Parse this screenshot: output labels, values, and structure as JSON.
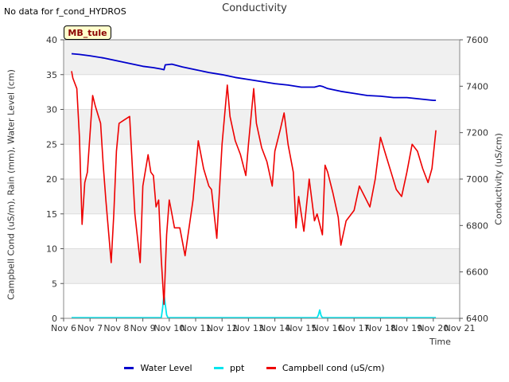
{
  "header": {
    "note": "No data for f_cond_HYDROS",
    "site_tag": "MB_tule"
  },
  "chart_data": {
    "type": "line",
    "title": "Conductivity",
    "xlabel": "Time",
    "ylabel_left": "Campbell Cond (uS/m), Rain (mm), Water Level (cm)",
    "ylabel_right": "Conductivity (uS/cm)",
    "x_tick_labels": [
      "Nov 6",
      "Nov 7",
      "Nov 8",
      "Nov 9",
      "Nov 10",
      "Nov 11",
      "Nov 12",
      "Nov 13",
      "Nov 14",
      "Nov 15",
      "Nov 16",
      "Nov 17",
      "Nov 18",
      "Nov 19",
      "Nov 20",
      "Nov 21"
    ],
    "xlim": [
      6,
      21
    ],
    "ylim_left": [
      0,
      40
    ],
    "yticks_left": [
      0,
      5,
      10,
      15,
      20,
      25,
      30,
      35,
      40
    ],
    "ylim_right": [
      6400,
      7600
    ],
    "yticks_right": [
      6400,
      6600,
      6800,
      7000,
      7200,
      7400,
      7600
    ],
    "grid": true,
    "legend_position": "bottom",
    "colors": {
      "band": "#f0f0f0",
      "gridline": "#dcdcdc",
      "axis": "#888888"
    },
    "series": [
      {
        "name": "Water Level",
        "color": "#0000cc",
        "axis": "left",
        "x": [
          6.3,
          6.6,
          7.0,
          7.5,
          8.0,
          8.5,
          9.0,
          9.4,
          9.7,
          9.8,
          9.85,
          10.1,
          10.5,
          11.0,
          11.5,
          12.0,
          12.5,
          13.0,
          13.5,
          14.0,
          14.5,
          15.0,
          15.5,
          15.7,
          15.8,
          16.0,
          16.5,
          17.0,
          17.5,
          18.0,
          18.5,
          19.0,
          19.5,
          20.0,
          20.1
        ],
        "values": [
          38.0,
          37.9,
          37.7,
          37.4,
          37.0,
          36.6,
          36.2,
          36.0,
          35.8,
          35.7,
          36.4,
          36.5,
          36.1,
          35.7,
          35.3,
          35.0,
          34.6,
          34.3,
          34.0,
          33.7,
          33.5,
          33.2,
          33.2,
          33.4,
          33.3,
          33.0,
          32.6,
          32.3,
          32.0,
          31.9,
          31.7,
          31.7,
          31.5,
          31.3,
          31.3
        ]
      },
      {
        "name": "ppt",
        "color": "#00e5ee",
        "axis": "left",
        "x": [
          6.3,
          9.7,
          9.75,
          9.8,
          9.85,
          9.9,
          9.95,
          12.8,
          14.8,
          15.6,
          15.65,
          15.7,
          15.75,
          15.8,
          20.1
        ],
        "values": [
          0.1,
          0.1,
          1.5,
          3.5,
          2.0,
          0.5,
          0.1,
          0.1,
          0.1,
          0.1,
          0.5,
          1.2,
          0.4,
          0.1,
          0.1
        ]
      },
      {
        "name": "Campbell cond (uS/cm)",
        "color": "#ee0000",
        "axis": "left",
        "x": [
          6.3,
          6.35,
          6.5,
          6.6,
          6.7,
          6.8,
          6.9,
          7.1,
          7.2,
          7.4,
          7.5,
          7.6,
          7.8,
          7.9,
          8.0,
          8.1,
          8.3,
          8.5,
          8.7,
          8.9,
          9.0,
          9.2,
          9.3,
          9.4,
          9.5,
          9.6,
          9.7,
          9.8,
          9.9,
          10.0,
          10.05,
          10.2,
          10.4,
          10.6,
          10.9,
          11.1,
          11.3,
          11.5,
          11.6,
          11.8,
          12.0,
          12.2,
          12.3,
          12.5,
          12.7,
          12.9,
          13.0,
          13.1,
          13.2,
          13.3,
          13.5,
          13.7,
          13.9,
          14.0,
          14.2,
          14.35,
          14.5,
          14.7,
          14.8,
          14.9,
          15.0,
          15.1,
          15.3,
          15.4,
          15.5,
          15.6,
          15.8,
          15.9,
          16.0,
          16.2,
          16.4,
          16.5,
          16.7,
          16.9,
          17.0,
          17.2,
          17.4,
          17.6,
          17.8,
          18.0,
          18.2,
          18.4,
          18.6,
          18.8,
          19.0,
          19.2,
          19.4,
          19.6,
          19.8,
          19.95,
          20.1
        ],
        "values": [
          35.5,
          34.5,
          33.0,
          26.0,
          13.5,
          19.5,
          21.0,
          32.0,
          30.5,
          28.0,
          22.0,
          17.0,
          8.0,
          15.0,
          24.0,
          28.0,
          28.5,
          29.0,
          15.0,
          8.0,
          19.0,
          23.5,
          21.0,
          20.5,
          16.0,
          17.0,
          8.5,
          2.0,
          12.0,
          17.0,
          16.0,
          13.0,
          13.0,
          9.0,
          17.0,
          25.5,
          21.5,
          19.0,
          18.5,
          11.5,
          25.0,
          33.5,
          29.0,
          25.5,
          23.5,
          20.5,
          25.0,
          29.0,
          33.0,
          28.0,
          24.5,
          22.5,
          19.0,
          24.0,
          27.0,
          29.5,
          25.0,
          21.0,
          13.0,
          17.5,
          15.0,
          12.5,
          20.0,
          17.0,
          14.0,
          15.0,
          12.0,
          22.0,
          21.0,
          18.0,
          14.5,
          10.5,
          14.0,
          15.0,
          15.5,
          19.0,
          17.5,
          16.0,
          20.0,
          26.0,
          23.5,
          21.0,
          18.5,
          17.5,
          21.0,
          25.0,
          24.0,
          21.5,
          19.5,
          21.5,
          27.0
        ]
      }
    ]
  }
}
